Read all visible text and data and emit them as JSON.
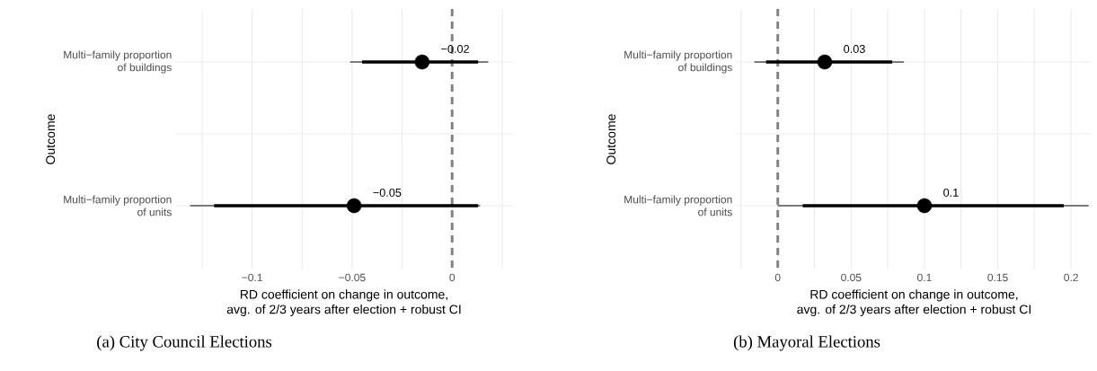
{
  "chart_data": [
    {
      "type": "scatter",
      "orientation": "horizontal",
      "title": "(a) City Council Elections",
      "xlabel": "RD coefficient on change in outcome,\navg. of 2/3 years after election + robust CI",
      "ylabel": "Outcome",
      "grid": true,
      "categories": [
        "Multi−family proportion\nof buildings",
        "Multi−family proportion\nof units"
      ],
      "series": [
        {
          "type": "bar",
          "color": "#000000",
          "base": [
            -0.045,
            -0.119
          ],
          "values": [
            0.058,
            0.132
          ]
        },
        {
          "type": "scatter",
          "color": "#000000",
          "values": [
            -0.015,
            -0.049
          ],
          "errors": [
            [
              -0.051,
              0.018
            ],
            [
              -0.131,
              0.014
            ]
          ],
          "value_labels": [
            "−0.02",
            "−0.05"
          ]
        }
      ],
      "xlim": [
        -0.138,
        0.03
      ],
      "xticks": [
        {
          "value": -0.125,
          "label": null
        },
        {
          "value": -0.1,
          "label": "−0.1"
        },
        {
          "value": -0.075,
          "label": null
        },
        {
          "value": -0.05,
          "label": "−0.05"
        },
        {
          "value": -0.025,
          "label": null
        },
        0,
        {
          "value": 0.025,
          "label": null
        }
      ],
      "ref_lines": [
        {
          "axis": "x",
          "value": 0,
          "color": "#808080",
          "line_style": "dashed"
        }
      ]
    },
    {
      "type": "scatter",
      "orientation": "horizontal",
      "title": "(b) Mayoral Elections",
      "xlabel": "RD coefficient on change in outcome,\navg. of 2/3 years after election + robust CI",
      "ylabel": "Outcome",
      "grid": true,
      "categories": [
        "Multi−family proportion\nof buildings",
        "Multi−family proportion\nof units"
      ],
      "series": [
        {
          "type": "bar",
          "color": "#000000",
          "base": [
            -0.008,
            0.017
          ],
          "values": [
            0.086,
            0.178
          ]
        },
        {
          "type": "scatter",
          "color": "#000000",
          "values": [
            0.032,
            0.1
          ],
          "errors": [
            [
              -0.016,
              0.086
            ],
            [
              0.0,
              0.212
            ]
          ],
          "value_labels": [
            "0.03",
            "0.1"
          ]
        }
      ],
      "xlim": [
        -0.028,
        0.214
      ],
      "xticks": [
        {
          "value": -0.025,
          "label": null
        },
        0,
        {
          "value": 0.025,
          "label": null
        },
        0.05,
        {
          "value": 0.075,
          "label": null
        },
        0.1,
        {
          "value": 0.125,
          "label": null
        },
        0.15,
        {
          "value": 0.175,
          "label": null
        },
        0.2
      ],
      "ref_lines": [
        {
          "axis": "x",
          "value": 0,
          "color": "#808080",
          "line_style": "dashed"
        }
      ]
    }
  ]
}
